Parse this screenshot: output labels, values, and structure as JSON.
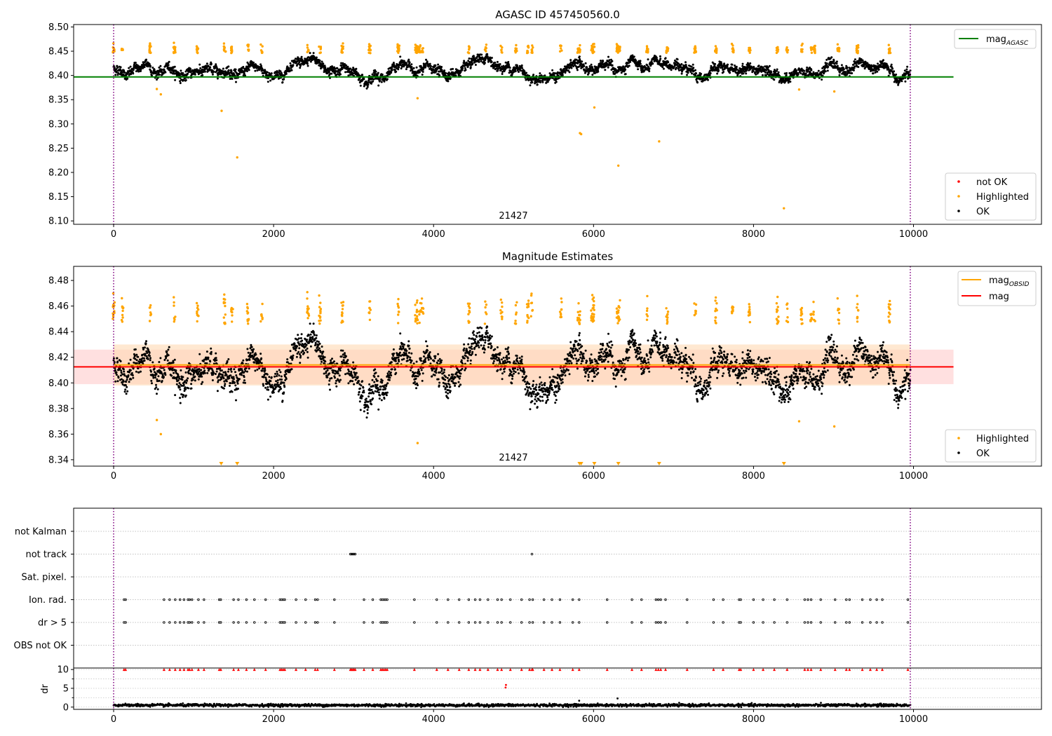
{
  "chart_data": [
    {
      "type": "scatter",
      "title": "AGASC ID 457450560.0",
      "xlabel": "",
      "ylabel": "",
      "xlim": [
        -500,
        11600
      ],
      "ylim": [
        8.093,
        8.505
      ],
      "xticks": [
        "0",
        "2000",
        "4000",
        "6000",
        "8000",
        "10000"
      ],
      "yticks": [
        "8.10",
        "8.15",
        "8.20",
        "8.25",
        "8.30",
        "8.35",
        "8.40",
        "8.45",
        "8.50"
      ],
      "grid": false,
      "obsid_annotation": "21427",
      "vlines_x": [
        0,
        9960
      ],
      "hline": {
        "name": "mag_AGASC",
        "y": 8.397,
        "x": [
          -500,
          10500
        ],
        "color": "#008000"
      },
      "ok_band": {
        "y_mid": 8.41,
        "y_spread": 0.018
      },
      "outliers": [
        {
          "x": 540,
          "y": 8.372
        },
        {
          "x": 590,
          "y": 8.361
        },
        {
          "x": 1350,
          "y": 8.327
        },
        {
          "x": 1545,
          "y": 8.231
        },
        {
          "x": 3800,
          "y": 8.353
        },
        {
          "x": 5830,
          "y": 8.281
        },
        {
          "x": 5845,
          "y": 8.279
        },
        {
          "x": 6010,
          "y": 8.334
        },
        {
          "x": 6310,
          "y": 8.214
        },
        {
          "x": 6820,
          "y": 8.264
        },
        {
          "x": 8380,
          "y": 8.126
        },
        {
          "x": 8570,
          "y": 8.371
        },
        {
          "x": 9010,
          "y": 8.367
        }
      ],
      "highlight_x": [
        0,
        110,
        460,
        760,
        1050,
        1390,
        1480,
        1680,
        1850,
        2430,
        2580,
        2860,
        3200,
        3560,
        3780,
        3800,
        3830,
        3860,
        4440,
        4650,
        4850,
        5030,
        5180,
        5230,
        5590,
        5810,
        5830,
        5980,
        6000,
        6300,
        6320,
        6670,
        6920,
        7270,
        7530,
        7740,
        7950,
        8300,
        8420,
        8600,
        8720,
        8760,
        9060,
        9300,
        9700
      ],
      "legend": {
        "placement": "lower-right",
        "entries": [
          "not OK",
          "Highlighted",
          "OK"
        ],
        "colors": [
          "#ff0000",
          "#ffa500",
          "#000000"
        ]
      },
      "line_legend": {
        "placement": "upper-right",
        "label": "mag",
        "subscript": "AGASC",
        "color": "#008000"
      }
    },
    {
      "type": "scatter",
      "title": "Magnitude Estimates",
      "xlabel": "",
      "ylabel": "",
      "xlim": [
        -500,
        11600
      ],
      "ylim": [
        8.335,
        8.491
      ],
      "xticks": [
        "0",
        "2000",
        "4000",
        "6000",
        "8000",
        "10000"
      ],
      "yticks": [
        "8.34",
        "8.36",
        "8.38",
        "8.40",
        "8.42",
        "8.44",
        "8.46",
        "8.48"
      ],
      "grid": false,
      "obsid_annotation": "21427",
      "vlines_x": [
        0,
        9960
      ],
      "mag_line": {
        "name": "mag",
        "y": 8.4125,
        "x": [
          -500,
          10500
        ],
        "color": "#ff0000"
      },
      "mag_band": {
        "y": [
          8.399,
          8.426
        ],
        "color": "#ffcccc"
      },
      "obsid_line": {
        "name": "mag_OBSID",
        "y": 8.414,
        "x": [
          0,
          9960
        ],
        "color": "#ffa500"
      },
      "obsid_band": {
        "y": [
          8.398,
          8.43
        ],
        "color": "#ffd9b3"
      },
      "ok_band": {
        "y_mid": 8.41,
        "y_spread": 0.016
      },
      "outliers": [
        {
          "x": 540,
          "y": 8.371
        },
        {
          "x": 590,
          "y": 8.36
        },
        {
          "x": 3800,
          "y": 8.353
        },
        {
          "x": 8570,
          "y": 8.37
        },
        {
          "x": 9010,
          "y": 8.366
        }
      ],
      "below_axis_x": [
        1345,
        1545,
        5825,
        5845,
        6010,
        6310,
        6820,
        8380
      ],
      "highlight_x": [
        0,
        110,
        460,
        760,
        1050,
        1390,
        1480,
        1680,
        1850,
        2430,
        2580,
        2860,
        3200,
        3560,
        3780,
        3800,
        3830,
        3860,
        4440,
        4650,
        4850,
        5030,
        5180,
        5230,
        5590,
        5810,
        5830,
        5980,
        6000,
        6300,
        6320,
        6670,
        6920,
        7270,
        7530,
        7740,
        7950,
        8300,
        8420,
        8600,
        8720,
        8760,
        9060,
        9300,
        9700
      ],
      "legend": {
        "placement": "lower-right",
        "entries": [
          "Highlighted",
          "OK"
        ],
        "colors": [
          "#ffa500",
          "#000000"
        ]
      },
      "line_legend": {
        "placement": "upper-right",
        "entries": [
          {
            "label": "mag",
            "subscript": "OBSID",
            "color": "#ffa500"
          },
          {
            "label": "mag",
            "subscript": "",
            "color": "#ff0000"
          }
        ]
      }
    },
    {
      "type": "scatter",
      "title": "",
      "xlabel": "",
      "ylabel": "",
      "xlim": [
        -500,
        11600
      ],
      "categories": [
        "not Kalman",
        "not track",
        "Sat. pixel.",
        "Ion. rad.",
        "dr > 5",
        "OBS not OK"
      ],
      "grid": true,
      "vlines_x": [
        0,
        9960
      ],
      "flag_points": {
        "not track": [
          2960,
          2975,
          2990,
          3005,
          3020,
          5230
        ],
        "Ion. rad.": [
          130,
          150,
          630,
          700,
          770,
          830,
          880,
          930,
          950,
          980,
          1060,
          1130,
          1320,
          1340,
          1500,
          1560,
          1660,
          1760,
          1900,
          2080,
          2100,
          2120,
          2140,
          2280,
          2400,
          2520,
          2550,
          2760,
          3130,
          3240,
          3340,
          3360,
          3380,
          3400,
          3420,
          3760,
          4040,
          4180,
          4320,
          4440,
          4520,
          4580,
          4680,
          4800,
          4850,
          4960,
          5100,
          5200,
          5240,
          5380,
          5480,
          5580,
          5740,
          5820,
          6170,
          6480,
          6600,
          6780,
          6810,
          6840,
          6900,
          7170,
          7500,
          7620,
          7820,
          7840,
          8000,
          8120,
          8260,
          8420,
          8640,
          8680,
          8720,
          8840,
          9020,
          9160,
          9200,
          9360,
          9460,
          9540,
          9610,
          9930
        ]
      },
      "legend": null
    },
    {
      "type": "scatter",
      "title": "",
      "xlabel": "",
      "ylabel": "dr",
      "xlim": [
        -500,
        11600
      ],
      "ylim": [
        -0.6,
        10.4
      ],
      "yticks": [
        "0",
        "5",
        "10"
      ],
      "xticks": [
        "0",
        "2000",
        "4000",
        "6000",
        "8000",
        "10000"
      ],
      "grid": true,
      "baseline_dr": {
        "y_mid": 0.5,
        "y_spread": 0.4
      },
      "outliers": [
        {
          "x": 4900,
          "y": 5.2
        },
        {
          "x": 4905,
          "y": 5.9
        },
        {
          "x": 5820,
          "y": 1.7
        },
        {
          "x": 6300,
          "y": 2.3
        }
      ],
      "clipped_y": 10,
      "legend": null
    }
  ]
}
